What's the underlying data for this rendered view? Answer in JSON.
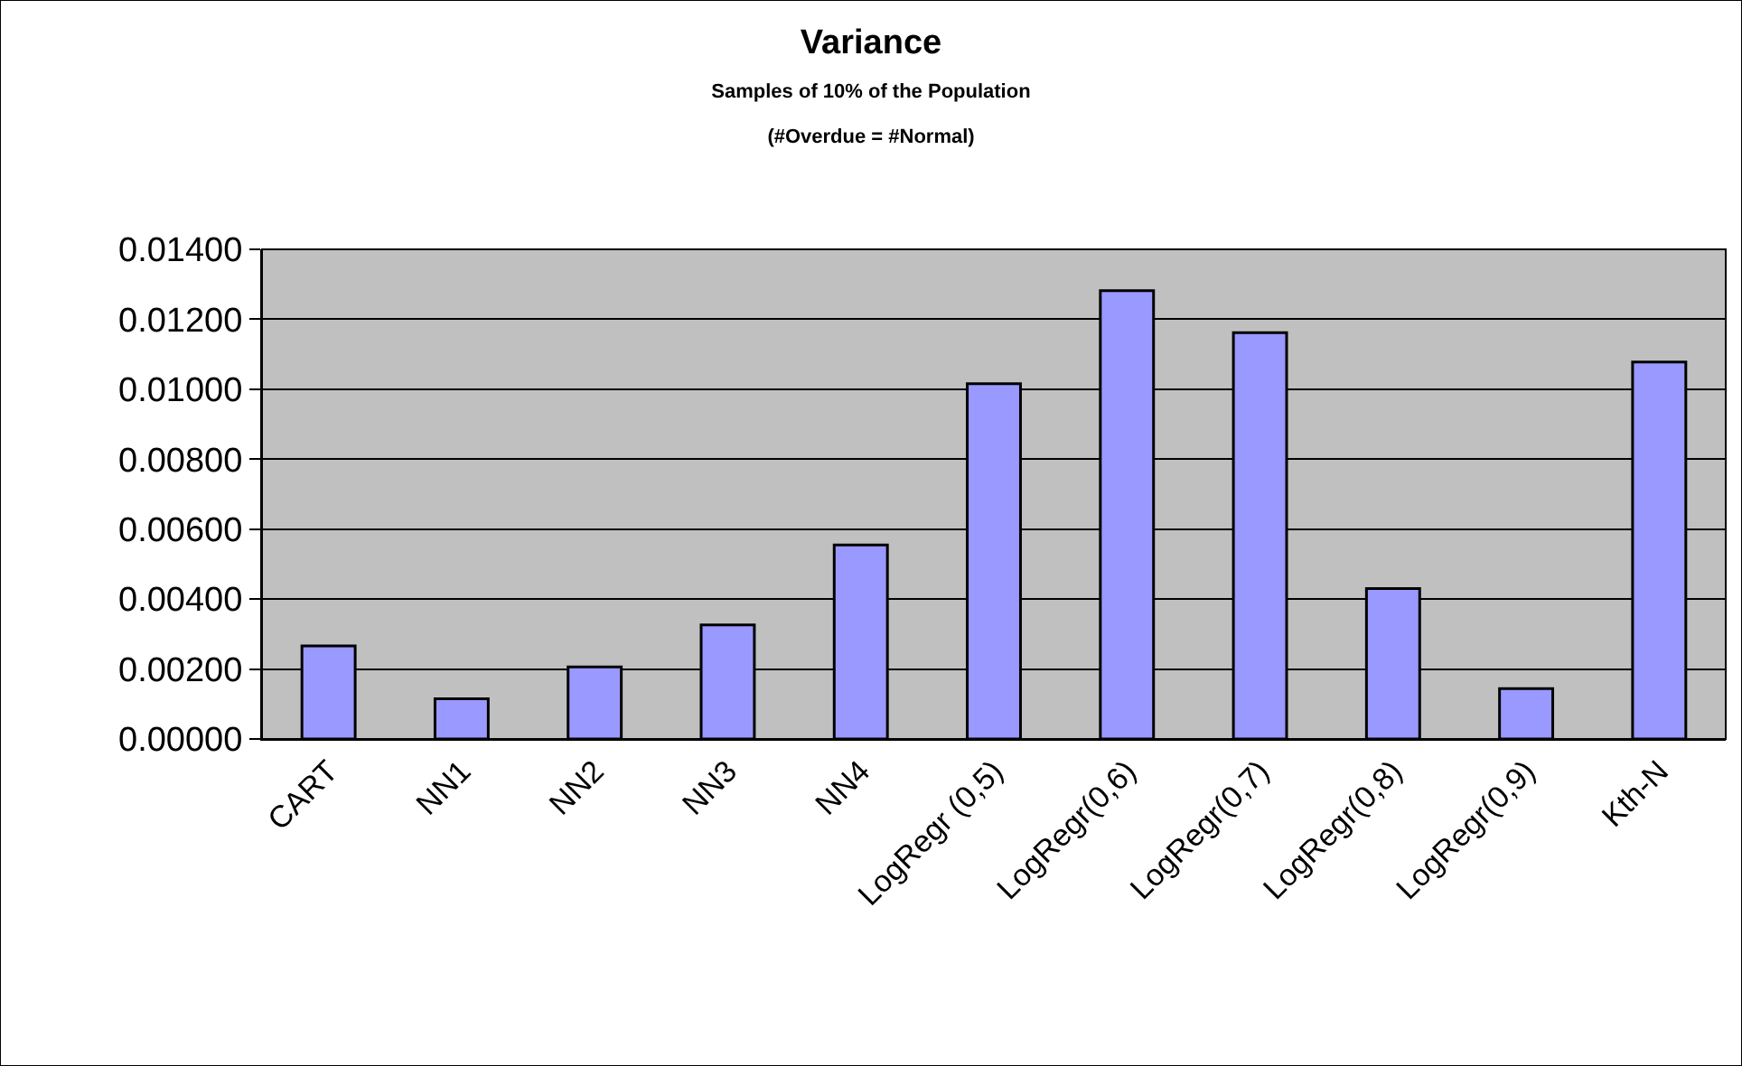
{
  "chart_data": {
    "type": "bar",
    "title": "Variance",
    "subtitle": "Samples of 10% of the Population\n(#Overdue = #Normal)",
    "categories": [
      "CART",
      "NN1",
      "NN2",
      "NN3",
      "NN4",
      "LogRegr (0,5)",
      "LogRegr(0,6)",
      "LogRegr(0,7)",
      "LogRegr(0,8)",
      "LogRegr(0,9)",
      "Kth-N"
    ],
    "values": [
      0.00266,
      0.00115,
      0.00206,
      0.00326,
      0.00555,
      0.01016,
      0.01282,
      0.01162,
      0.0043,
      0.00144,
      0.01078
    ],
    "color": "#9999ff",
    "ylim": [
      0,
      0.014
    ],
    "yticks": [
      {
        "value": 0,
        "label": "0.00000"
      },
      {
        "value": 0.002,
        "label": "0.00200"
      },
      {
        "value": 0.004,
        "label": "0.00400"
      },
      {
        "value": 0.006,
        "label": "0.00600"
      },
      {
        "value": 0.008,
        "label": "0.00800"
      },
      {
        "value": 0.01,
        "label": "0.01000"
      },
      {
        "value": 0.012,
        "label": "0.01200"
      },
      {
        "value": 0.014,
        "label": "0.01400"
      }
    ],
    "grid": "y"
  }
}
